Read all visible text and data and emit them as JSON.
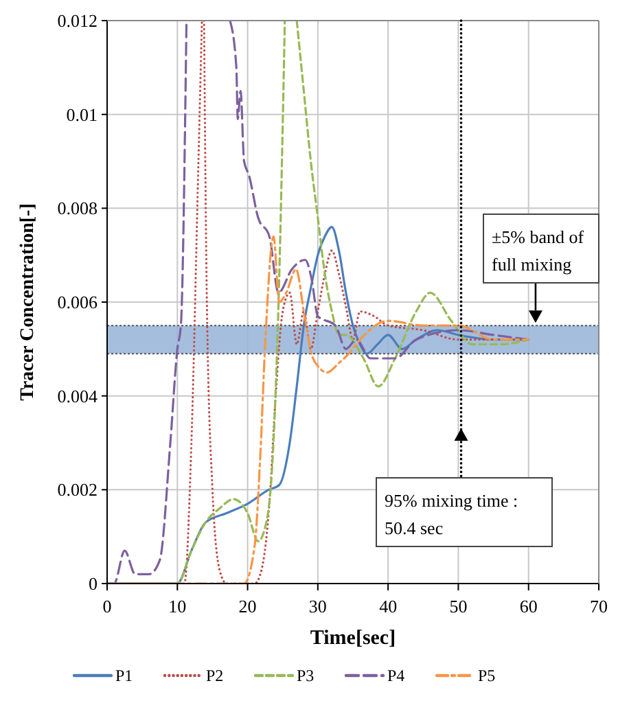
{
  "chart_data": {
    "type": "line",
    "xlabel": "Time[sec]",
    "ylabel": "Tracer Concentration[-]",
    "xlim": [
      0,
      70
    ],
    "xticks": [
      0,
      10,
      20,
      30,
      40,
      50,
      60,
      70
    ],
    "ylim": [
      0,
      0.012
    ],
    "yticks": [
      0,
      0.002,
      0.004,
      0.006,
      0.008,
      0.01,
      0.012
    ],
    "grid": true,
    "legend": "bottom",
    "marker": "none",
    "series": [
      {
        "name": "P1",
        "color": "#4a7ebb",
        "line_style": "solid",
        "x": [
          0,
          10,
          12,
          14,
          17,
          20,
          23,
          24.5,
          26,
          27,
          28,
          29,
          30,
          31,
          32,
          33,
          34,
          35,
          36,
          37,
          38.5,
          40,
          42,
          44,
          47,
          50,
          55,
          60
        ],
        "values": [
          0,
          0,
          0.0007,
          0.0013,
          0.0015,
          0.0017,
          0.002,
          0.0021,
          0.003,
          0.0042,
          0.0055,
          0.0063,
          0.007,
          0.0074,
          0.0076,
          0.0071,
          0.0062,
          0.0055,
          0.0051,
          0.0049,
          0.0051,
          0.0053,
          0.005,
          0.0052,
          0.0054,
          0.0053,
          0.0052,
          0.0052
        ]
      },
      {
        "name": "P2",
        "color": "#be4b48",
        "line_style": "dotted",
        "x": [
          0,
          11,
          12,
          13,
          13.5,
          13.65,
          13.8,
          14.2,
          15,
          16,
          17,
          21,
          22,
          23,
          24,
          25,
          26,
          27,
          28,
          29,
          30,
          31,
          32,
          33,
          34,
          35,
          36,
          38,
          40,
          45,
          50,
          55,
          60
        ],
        "values": [
          0,
          0,
          0.003,
          0.009,
          0.012,
          null,
          0.012,
          0.006,
          0.002,
          0.0003,
          0,
          0,
          0.0003,
          0.0015,
          0.004,
          0.0058,
          0.0062,
          0.0051,
          0.0058,
          0.005,
          0.0058,
          0.0066,
          0.0071,
          0.0066,
          0.0059,
          0.0052,
          0.0058,
          0.0057,
          0.0055,
          0.0054,
          0.0052,
          0.0052,
          0.0052
        ]
      },
      {
        "name": "P3",
        "color": "#98b954",
        "line_style": "dashed",
        "x": [
          0,
          10,
          12,
          14,
          16,
          18,
          20,
          21.5,
          22.5,
          23.5,
          24.5,
          25.3,
          26.2,
          27,
          28,
          29,
          30,
          31,
          32,
          33,
          34,
          36.5,
          38.6,
          41,
          44,
          46,
          49,
          52,
          56,
          60
        ],
        "values": [
          0,
          0,
          0.0007,
          0.0013,
          0.0016,
          0.0018,
          0.0015,
          0.0009,
          0.0012,
          0.0025,
          0.0065,
          0.012,
          null,
          0.012,
          0.0105,
          0.009,
          0.0078,
          0.0066,
          0.0058,
          0.0053,
          0.0053,
          0.0048,
          0.0042,
          0.0048,
          0.0058,
          0.0062,
          0.0056,
          0.0051,
          0.0051,
          0.0052
        ]
      },
      {
        "name": "P4",
        "color": "#7d60a0",
        "line_style": "dashed",
        "x": [
          0,
          1,
          2.5,
          4,
          6,
          7.5,
          9,
          10,
          10.5,
          11.3,
          14,
          17.5,
          18.4,
          18.6,
          19,
          19.5,
          20.2,
          21.5,
          23.1,
          24.4,
          26.3,
          28.2,
          29.1,
          30,
          32.5,
          34,
          35.5,
          37.5,
          41,
          44,
          50,
          55,
          60
        ],
        "values": [
          0,
          0,
          0.0007,
          0.0002,
          0.0002,
          0.0005,
          0.003,
          0.005,
          0.0055,
          0.012,
          null,
          0.012,
          0.011,
          0.0099,
          0.0105,
          0.009,
          0.0087,
          0.0078,
          0.0074,
          0.0062,
          0.0067,
          0.0069,
          0.0065,
          0.0057,
          0.0055,
          0.005,
          0.0052,
          0.0048,
          0.0048,
          0.0052,
          0.0054,
          0.0053,
          0.0052
        ]
      },
      {
        "name": "P5",
        "color": "#f79646",
        "line_style": "dashed",
        "x": [
          0,
          19.5,
          21,
          21.8,
          22.5,
          23.7,
          24.5,
          25.5,
          26.9,
          28,
          29.1,
          30.2,
          31.3,
          33,
          34.4,
          36,
          40,
          45,
          50,
          55,
          60
        ],
        "values": [
          0,
          0,
          0.0008,
          0.0027,
          0.0051,
          0.0074,
          0.006,
          0.0062,
          0.0067,
          0.0058,
          0.0049,
          0.0046,
          0.0045,
          0.0047,
          0.0049,
          0.0052,
          0.0056,
          0.0055,
          0.0055,
          0.0052,
          0.0052
        ]
      }
    ],
    "bands": [
      {
        "axis": "y",
        "from": 0.0049,
        "to": 0.0055,
        "color": "#95b3d7"
      }
    ],
    "ref_lines": [
      {
        "axis": "x",
        "value": 50.4,
        "line_style": "dotted",
        "color": "#000000"
      }
    ],
    "annotations": [
      {
        "text": "±5% band of full mixing",
        "x": 61,
        "y": 0.0055
      },
      "95% mixing time : 50.4 sec"
    ]
  }
}
